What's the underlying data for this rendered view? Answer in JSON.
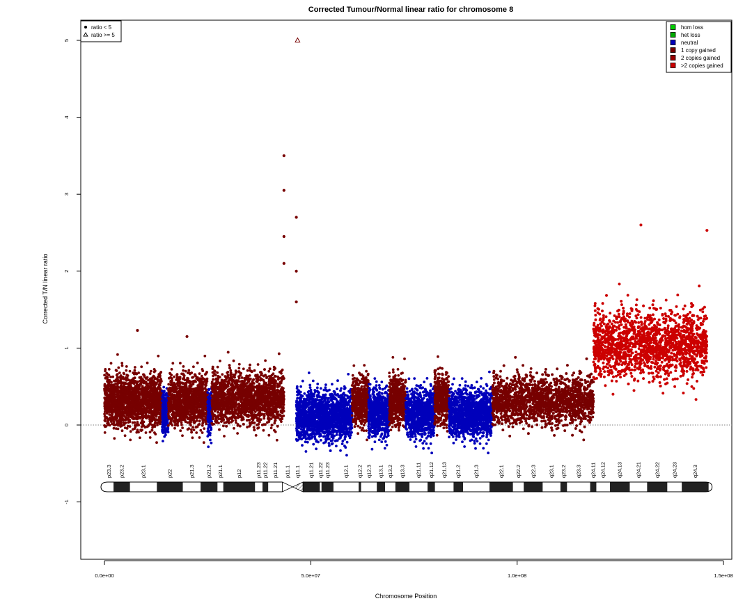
{
  "chart_data": {
    "type": "scatter",
    "title": "Corrected Tumour/Normal linear ratio for chromosome  8",
    "xlabel": "Chromosome Position",
    "ylabel": "Corrected T/N linear ratio",
    "xlim": [
      0,
      150000000
    ],
    "ylim": [
      -1.75,
      5.25
    ],
    "x_ticks": [
      {
        "value": 0,
        "label": "0.0e+00"
      },
      {
        "value": 50000000,
        "label": "5.0e+07"
      },
      {
        "value": 100000000,
        "label": "1.0e+08"
      },
      {
        "value": 150000000,
        "label": "1.5e+08"
      }
    ],
    "y_ticks": [
      {
        "value": -1,
        "label": "-1"
      },
      {
        "value": 0,
        "label": "0"
      },
      {
        "value": 1,
        "label": "1"
      },
      {
        "value": 2,
        "label": "2"
      },
      {
        "value": 3,
        "label": "3"
      },
      {
        "value": 4,
        "label": "4"
      },
      {
        "value": 5,
        "label": "5"
      }
    ],
    "reference_line": {
      "y": 0,
      "style": "dotted"
    },
    "shape_legend": {
      "position": "top-left",
      "items": [
        {
          "symbol": "filled-circle",
          "label": "ratio < 5"
        },
        {
          "symbol": "open-triangle",
          "label": "ratio >= 5"
        }
      ]
    },
    "state_legend": {
      "position": "top-right",
      "items": [
        {
          "label": "hom loss",
          "color": "#00cc00"
        },
        {
          "label": "het loss",
          "color": "#00aa00"
        },
        {
          "label": "neutral",
          "color": "#0000bb"
        },
        {
          "label": "1 copy gained",
          "color": "#770000"
        },
        {
          "label": "2 copies gained",
          "color": "#990000"
        },
        {
          "label": ">2 copies gained",
          "color": "#cc0000"
        }
      ]
    },
    "segments": [
      {
        "state": "1 copy gained",
        "start": 0,
        "end": 14000000,
        "mean": 0.32,
        "spread": 0.32
      },
      {
        "state": "neutral",
        "start": 14000000,
        "end": 15500000,
        "mean": 0.15,
        "spread": 0.28
      },
      {
        "state": "1 copy gained",
        "start": 15500000,
        "end": 25000000,
        "mean": 0.32,
        "spread": 0.32
      },
      {
        "state": "neutral",
        "start": 25000000,
        "end": 26000000,
        "mean": 0.15,
        "spread": 0.28
      },
      {
        "state": "1 copy gained",
        "start": 26000000,
        "end": 43500000,
        "mean": 0.35,
        "spread": 0.32
      },
      {
        "state": "neutral",
        "start": 46500000,
        "end": 60000000,
        "mean": 0.12,
        "spread": 0.3
      },
      {
        "state": "1 copy gained",
        "start": 60000000,
        "end": 64000000,
        "mean": 0.32,
        "spread": 0.3
      },
      {
        "state": "neutral",
        "start": 64000000,
        "end": 69000000,
        "mean": 0.15,
        "spread": 0.3
      },
      {
        "state": "1 copy gained",
        "start": 69000000,
        "end": 73000000,
        "mean": 0.32,
        "spread": 0.3
      },
      {
        "state": "neutral",
        "start": 73000000,
        "end": 80000000,
        "mean": 0.15,
        "spread": 0.3
      },
      {
        "state": "1 copy gained",
        "start": 80000000,
        "end": 83500000,
        "mean": 0.33,
        "spread": 0.3
      },
      {
        "state": "neutral",
        "start": 83500000,
        "end": 94000000,
        "mean": 0.15,
        "spread": 0.3
      },
      {
        "state": "1 copy gained",
        "start": 94000000,
        "end": 118500000,
        "mean": 0.32,
        "spread": 0.3
      },
      {
        "state": ">2 copies gained",
        "start": 118500000,
        "end": 146000000,
        "mean": 1.05,
        "spread": 0.42
      }
    ],
    "notable_points": [
      {
        "x": 43500000,
        "y": 3.5,
        "state": "1 copy gained",
        "symbol": "filled-circle"
      },
      {
        "x": 43500000,
        "y": 3.05,
        "state": "1 copy gained",
        "symbol": "filled-circle"
      },
      {
        "x": 43500000,
        "y": 2.45,
        "state": "1 copy gained",
        "symbol": "filled-circle"
      },
      {
        "x": 43500000,
        "y": 2.1,
        "state": "1 copy gained",
        "symbol": "filled-circle"
      },
      {
        "x": 46500000,
        "y": 2.7,
        "state": "1 copy gained",
        "symbol": "filled-circle"
      },
      {
        "x": 46500000,
        "y": 2.0,
        "state": "1 copy gained",
        "symbol": "filled-circle"
      },
      {
        "x": 46500000,
        "y": 1.6,
        "state": "1 copy gained",
        "symbol": "filled-circle"
      },
      {
        "x": 46800000,
        "y": 5.0,
        "state": "1 copy gained",
        "symbol": "open-triangle"
      },
      {
        "x": 130000000,
        "y": 2.6,
        "state": ">2 copies gained",
        "symbol": "filled-circle"
      },
      {
        "x": 146000000,
        "y": 2.53,
        "state": ">2 copies gained",
        "symbol": "filled-circle"
      },
      {
        "x": 8000000,
        "y": 1.23,
        "state": "1 copy gained",
        "symbol": "filled-circle"
      },
      {
        "x": 20000000,
        "y": 1.15,
        "state": "1 copy gained",
        "symbol": "filled-circle"
      }
    ],
    "ideogram": {
      "bands": [
        {
          "name": "p23.3",
          "start": 0,
          "end": 2200000,
          "stain": "gneg"
        },
        {
          "name": "p23.2",
          "start": 2200000,
          "end": 6200000,
          "stain": "gpos"
        },
        {
          "name": "p23.1",
          "start": 6200000,
          "end": 12700000,
          "stain": "gneg"
        },
        {
          "name": "p22",
          "start": 12700000,
          "end": 19000000,
          "stain": "gpos"
        },
        {
          "name": "p21.3",
          "start": 19000000,
          "end": 23300000,
          "stain": "gneg"
        },
        {
          "name": "p21.2",
          "start": 23300000,
          "end": 27400000,
          "stain": "gpos"
        },
        {
          "name": "p21.1",
          "start": 27400000,
          "end": 28800000,
          "stain": "gneg"
        },
        {
          "name": "p12",
          "start": 28800000,
          "end": 36500000,
          "stain": "gpos"
        },
        {
          "name": "p11.23",
          "start": 36500000,
          "end": 38300000,
          "stain": "gneg"
        },
        {
          "name": "p11.22",
          "start": 38300000,
          "end": 39700000,
          "stain": "gpos"
        },
        {
          "name": "p11.21",
          "start": 39700000,
          "end": 43100000,
          "stain": "gneg"
        },
        {
          "name": "p11.1",
          "start": 43100000,
          "end": 45600000,
          "stain": "acen"
        },
        {
          "name": "q11.1",
          "start": 45600000,
          "end": 48100000,
          "stain": "acen"
        },
        {
          "name": "q11.21",
          "start": 48100000,
          "end": 52200000,
          "stain": "gpos"
        },
        {
          "name": "q11.22",
          "start": 52200000,
          "end": 52600000,
          "stain": "gneg"
        },
        {
          "name": "q11.23",
          "start": 52600000,
          "end": 55500000,
          "stain": "gpos"
        },
        {
          "name": "q12.1",
          "start": 55500000,
          "end": 61600000,
          "stain": "gneg"
        },
        {
          "name": "q12.2",
          "start": 61600000,
          "end": 62200000,
          "stain": "gpos"
        },
        {
          "name": "q12.3",
          "start": 62200000,
          "end": 66000000,
          "stain": "gneg"
        },
        {
          "name": "q13.1",
          "start": 66000000,
          "end": 68000000,
          "stain": "gpos"
        },
        {
          "name": "q13.2",
          "start": 68000000,
          "end": 70500000,
          "stain": "gneg"
        },
        {
          "name": "q13.3",
          "start": 70500000,
          "end": 73900000,
          "stain": "gpos"
        },
        {
          "name": "q21.11",
          "start": 73900000,
          "end": 78300000,
          "stain": "gneg"
        },
        {
          "name": "q21.12",
          "start": 78300000,
          "end": 80100000,
          "stain": "gpos"
        },
        {
          "name": "q21.13",
          "start": 80100000,
          "end": 84600000,
          "stain": "gneg"
        },
        {
          "name": "q21.2",
          "start": 84600000,
          "end": 86900000,
          "stain": "gpos"
        },
        {
          "name": "q21.3",
          "start": 86900000,
          "end": 93300000,
          "stain": "gneg"
        },
        {
          "name": "q22.1",
          "start": 93300000,
          "end": 99000000,
          "stain": "gpos"
        },
        {
          "name": "q22.2",
          "start": 99000000,
          "end": 101600000,
          "stain": "gneg"
        },
        {
          "name": "q22.3",
          "start": 101600000,
          "end": 106200000,
          "stain": "gpos"
        },
        {
          "name": "q23.1",
          "start": 106200000,
          "end": 110500000,
          "stain": "gneg"
        },
        {
          "name": "q23.2",
          "start": 110500000,
          "end": 112100000,
          "stain": "gpos"
        },
        {
          "name": "q23.3",
          "start": 112100000,
          "end": 117700000,
          "stain": "gneg"
        },
        {
          "name": "q24.11",
          "start": 117700000,
          "end": 119200000,
          "stain": "gpos"
        },
        {
          "name": "q24.12",
          "start": 119200000,
          "end": 122500000,
          "stain": "gneg"
        },
        {
          "name": "q24.13",
          "start": 122500000,
          "end": 127300000,
          "stain": "gpos"
        },
        {
          "name": "q24.21",
          "start": 127300000,
          "end": 131500000,
          "stain": "gneg"
        },
        {
          "name": "q24.22",
          "start": 131500000,
          "end": 136400000,
          "stain": "gpos"
        },
        {
          "name": "q24.23",
          "start": 136400000,
          "end": 139900000,
          "stain": "gneg"
        },
        {
          "name": "q24.3",
          "start": 139900000,
          "end": 146400000,
          "stain": "gpos"
        }
      ]
    }
  }
}
